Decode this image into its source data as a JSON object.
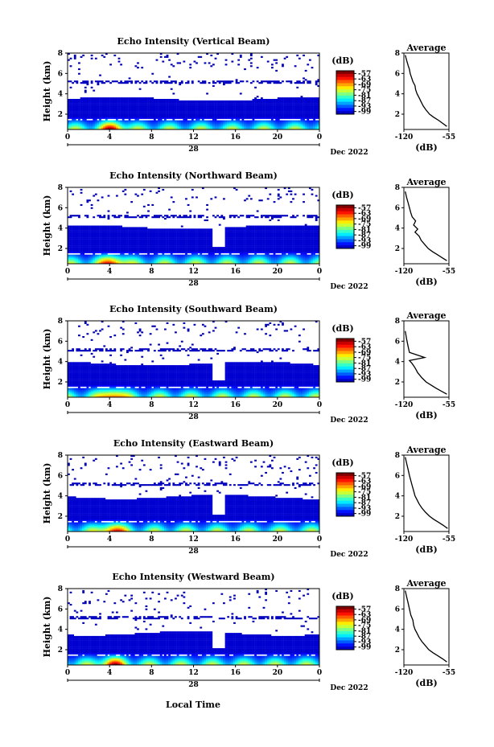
{
  "figure": {
    "x_axis_label": "Local Time",
    "day_label": "28",
    "month_year_label": "Dec 2022",
    "colorbar_unit": "(dB)",
    "colorbar_ticks": [
      "-57",
      "-63",
      "-69",
      "-75",
      "-81",
      "-87",
      "-93",
      "-99"
    ],
    "profile_title": "Average",
    "profile_xlabel": "(dB)"
  },
  "chart_data": [
    {
      "type": "heatmap",
      "title": "Echo Intensity (Vertical Beam)",
      "ylabel": "Height (km)",
      "x_ticks": [
        "0",
        "4",
        "8",
        "12",
        "16",
        "20",
        "0"
      ],
      "y_ticks": [
        "2",
        "4",
        "6",
        "8"
      ],
      "xlim": [
        0,
        24
      ],
      "ylim": [
        0.5,
        8
      ],
      "clim": [
        -99,
        -57
      ],
      "colormap": "jet",
      "profile": {
        "type": "line",
        "title": "Average",
        "x_ticks": [
          "-120",
          "-55"
        ],
        "y_ticks": [
          "2",
          "4",
          "6",
          "8"
        ],
        "xlim": [
          -120,
          -55
        ],
        "ylim": [
          0.5,
          8
        ],
        "x": [
          -58,
          -64,
          -70,
          -77,
          -83,
          -88,
          -92,
          -95,
          -98,
          -101,
          -103,
          -104,
          -107,
          -109,
          -111,
          -112,
          -114,
          -116,
          -118
        ],
        "y": [
          0.8,
          1.1,
          1.4,
          1.7,
          2.0,
          2.4,
          2.8,
          3.2,
          3.6,
          4.0,
          4.4,
          4.8,
          5.2,
          5.6,
          6.0,
          6.4,
          6.8,
          7.3,
          7.8
        ]
      }
    },
    {
      "type": "heatmap",
      "title": "Echo Intensity (Northward Beam)",
      "ylabel": "Height (km)",
      "x_ticks": [
        "0",
        "4",
        "8",
        "12",
        "16",
        "20",
        "0"
      ],
      "y_ticks": [
        "2",
        "4",
        "6",
        "8"
      ],
      "xlim": [
        0,
        24
      ],
      "ylim": [
        0.5,
        8
      ],
      "clim": [
        -99,
        -57
      ],
      "colormap": "jet",
      "profile": {
        "type": "line",
        "title": "Average",
        "x_ticks": [
          "-120",
          "-55"
        ],
        "y_ticks": [
          "2",
          "4",
          "6",
          "8"
        ],
        "xlim": [
          -120,
          -55
        ],
        "ylim": [
          0.5,
          8
        ],
        "x": [
          -58,
          -65,
          -72,
          -79,
          -85,
          -90,
          -95,
          -98,
          -104,
          -100,
          -106,
          -103,
          -108,
          -110,
          -112,
          -114,
          -116,
          -118
        ],
        "y": [
          0.8,
          1.1,
          1.4,
          1.7,
          2.0,
          2.4,
          2.8,
          3.2,
          3.6,
          3.9,
          4.3,
          4.7,
          5.1,
          5.5,
          6.0,
          6.5,
          7.0,
          7.6
        ]
      }
    },
    {
      "type": "heatmap",
      "title": "Echo Intensity (Southward Beam)",
      "ylabel": "Height (km)",
      "x_ticks": [
        "0",
        "4",
        "8",
        "12",
        "16",
        "20",
        "0"
      ],
      "y_ticks": [
        "2",
        "4",
        "6",
        "8"
      ],
      "xlim": [
        0,
        24
      ],
      "ylim": [
        0.5,
        8
      ],
      "clim": [
        -99,
        -57
      ],
      "colormap": "jet",
      "profile": {
        "type": "line",
        "title": "Average",
        "x_ticks": [
          "-120",
          "-55"
        ],
        "y_ticks": [
          "2",
          "4",
          "6",
          "8"
        ],
        "xlim": [
          -120,
          -55
        ],
        "ylim": [
          0.5,
          8
        ],
        "x": [
          -58,
          -66,
          -74,
          -81,
          -88,
          -94,
          -100,
          -104,
          -108,
          -112,
          -90,
          -112,
          -114,
          -116,
          -118
        ],
        "y": [
          0.8,
          1.1,
          1.4,
          1.7,
          2.0,
          2.4,
          2.9,
          3.4,
          3.8,
          4.1,
          4.4,
          4.9,
          5.5,
          6.2,
          7.0
        ]
      }
    },
    {
      "type": "heatmap",
      "title": "Echo Intensity (Eastward Beam)",
      "ylabel": "Height (km)",
      "x_ticks": [
        "0",
        "4",
        "8",
        "12",
        "16",
        "20",
        "0"
      ],
      "y_ticks": [
        "2",
        "4",
        "6",
        "8"
      ],
      "xlim": [
        0,
        24
      ],
      "ylim": [
        0.5,
        8
      ],
      "clim": [
        -99,
        -57
      ],
      "colormap": "jet",
      "profile": {
        "type": "line",
        "title": "Average",
        "x_ticks": [
          "-120",
          "-55"
        ],
        "y_ticks": [
          "2",
          "4",
          "6",
          "8"
        ],
        "xlim": [
          -120,
          -55
        ],
        "ylim": [
          0.5,
          8
        ],
        "x": [
          -57,
          -63,
          -70,
          -77,
          -83,
          -89,
          -94,
          -98,
          -101,
          -104,
          -106,
          -108,
          -110,
          -112,
          -114,
          -116,
          -118
        ],
        "y": [
          0.8,
          1.1,
          1.4,
          1.7,
          2.0,
          2.4,
          2.8,
          3.2,
          3.6,
          4.0,
          4.5,
          5.0,
          5.5,
          6.0,
          6.6,
          7.2,
          7.8
        ]
      }
    },
    {
      "type": "heatmap",
      "title": "Echo Intensity (Westward Beam)",
      "ylabel": "Height (km)",
      "x_ticks": [
        "0",
        "4",
        "8",
        "12",
        "16",
        "20",
        "0"
      ],
      "y_ticks": [
        "2",
        "4",
        "6",
        "8"
      ],
      "xlim": [
        0,
        24
      ],
      "ylim": [
        0.5,
        8
      ],
      "clim": [
        -99,
        -57
      ],
      "colormap": "jet",
      "profile": {
        "type": "line",
        "title": "Average",
        "x_ticks": [
          "-120",
          "-55"
        ],
        "y_ticks": [
          "2",
          "4",
          "6",
          "8"
        ],
        "xlim": [
          -120,
          -55
        ],
        "ylim": [
          0.5,
          8
        ],
        "x": [
          -58,
          -64,
          -71,
          -78,
          -84,
          -89,
          -94,
          -98,
          -101,
          -104,
          -106,
          -107,
          -110,
          -112,
          -114,
          -116,
          -118
        ],
        "y": [
          0.8,
          1.1,
          1.4,
          1.7,
          2.0,
          2.4,
          2.8,
          3.2,
          3.6,
          4.0,
          4.4,
          4.9,
          5.4,
          6.0,
          6.6,
          7.2,
          7.8
        ]
      }
    }
  ]
}
